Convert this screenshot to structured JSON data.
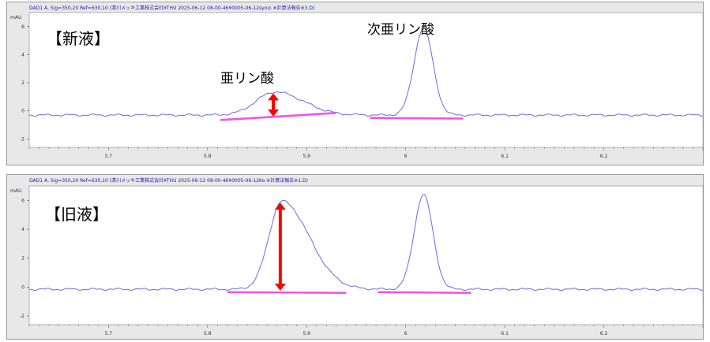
{
  "chart_data": [
    {
      "type": "line",
      "title": "DAD1 A, Sig=350,20 Ref=630,10 (清川メッキ工業株式会社¥THU 2025-06-12 08-00-46¥0005-06-12syo◎  ※計算法報告※3.D)",
      "panel_label": "【新液】",
      "ylabel": "mAU",
      "yticks": [
        -2,
        0,
        2,
        4,
        6
      ],
      "xticks": [
        5.7,
        5.8,
        5.9,
        6,
        6.1,
        6.2
      ],
      "xlim": [
        5.62,
        6.3
      ],
      "ylim": [
        -2.6,
        7.0
      ],
      "baseline": -0.3,
      "peaks": [
        {
          "label": "亜リン酸",
          "x": 5.868,
          "height": 1.65,
          "sigma": 0.019
        },
        {
          "label": "次亜リン酸",
          "x": 6.018,
          "height": 6.2,
          "sigma": 0.0095
        }
      ],
      "line_color": "#6b6bdd",
      "marker_color": "#ee55e8",
      "arrow_color": "#ff0000"
    },
    {
      "type": "line",
      "title": "DAD1 A, Sig=350,20 Ref=630,10 (清川メッキ工業株式会社¥THU 2025-06-12 08-00-46¥0005-06-12Ko  ※計算法報告※1.D)",
      "panel_label": "【旧液】",
      "ylabel": "mAU",
      "yticks": [
        -2,
        0,
        2,
        4,
        6
      ],
      "xticks": [
        5.7,
        5.8,
        5.9,
        6,
        6.1,
        6.2
      ],
      "xlim": [
        5.62,
        6.3
      ],
      "ylim": [
        -2.6,
        7.0
      ],
      "baseline": -0.15,
      "peaks": [
        {
          "label": "",
          "x": 5.875,
          "height": 6.1,
          "sigma": 0.013
        },
        {
          "label": "",
          "x": 6.018,
          "height": 6.55,
          "sigma": 0.0095
        }
      ],
      "line_color": "#6b6bdd",
      "marker_color": "#ee55e8",
      "arrow_color": "#ff0000"
    }
  ]
}
